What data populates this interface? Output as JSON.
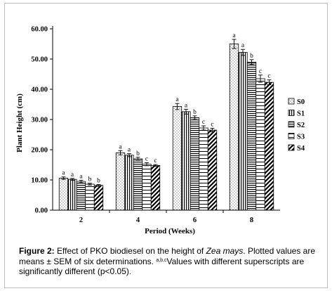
{
  "chart_data": {
    "type": "bar",
    "title": "",
    "xlabel": "Period (Weeks)",
    "ylabel": "Plant Height (cm)",
    "ylim": [
      0,
      60
    ],
    "yticks": [
      "0.00",
      "10.00",
      "20.00",
      "30.00",
      "40.00",
      "50.00",
      "60.00"
    ],
    "categories": [
      "2",
      "4",
      "6",
      "8"
    ],
    "legend_position": "right",
    "grid": false,
    "series": [
      {
        "name": "S0",
        "pattern": "dots",
        "values": [
          10.6,
          19.0,
          34.3,
          55.0
        ],
        "errors": [
          0.4,
          0.7,
          1.0,
          1.5
        ],
        "labels": [
          "a",
          "a",
          "a",
          "a"
        ]
      },
      {
        "name": "S1",
        "pattern": "vlines",
        "values": [
          10.2,
          18.2,
          32.6,
          52.2
        ],
        "errors": [
          0.3,
          0.5,
          0.8,
          1.0
        ],
        "labels": [
          "a",
          "a",
          "a",
          "a"
        ]
      },
      {
        "name": "S2",
        "pattern": "hlines",
        "values": [
          9.5,
          17.0,
          30.6,
          49.0
        ],
        "errors": [
          0.4,
          0.5,
          0.6,
          0.8
        ],
        "labels": [
          "a",
          "b",
          "b",
          "b"
        ]
      },
      {
        "name": "S3",
        "pattern": "hlines-sparse",
        "values": [
          8.6,
          15.2,
          27.2,
          43.5
        ],
        "errors": [
          0.3,
          0.5,
          0.7,
          1.2
        ],
        "labels": [
          "b",
          "c",
          "c",
          "c"
        ]
      },
      {
        "name": "S4",
        "pattern": "diagonal",
        "values": [
          8.2,
          14.8,
          26.5,
          42.3
        ],
        "errors": [
          0.3,
          0.3,
          0.6,
          0.8
        ],
        "labels": [
          "b",
          "c",
          "c",
          "c"
        ]
      }
    ]
  },
  "caption": {
    "figure_label": "Figure 2:",
    "text_1": " Effect of PKO biodiesel on the height of ",
    "species": "Zea mays",
    "text_2": ". Plotted values are means ± SEM of six determinations. ",
    "superscripts": "a,b,c",
    "text_3": "Values with different superscripts are significantly different (p<0.05)."
  }
}
